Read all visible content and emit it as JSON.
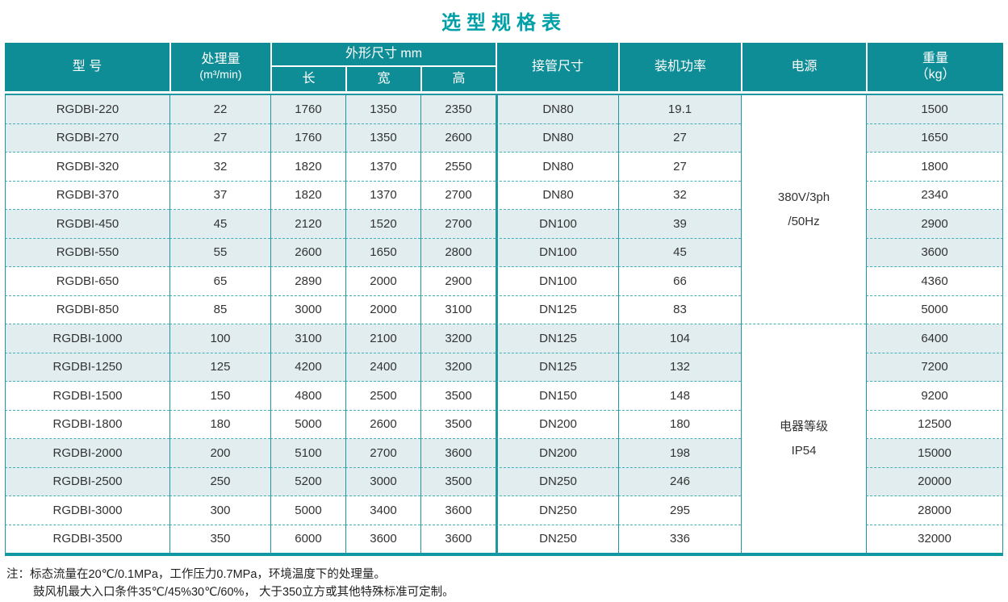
{
  "title": "选型规格表",
  "table": {
    "headers": {
      "model": "型 号",
      "capacity": "处理量",
      "capacity_unit": "(m³/min)",
      "dimensions": "外形尺寸 mm",
      "length": "长",
      "width": "宽",
      "height": "高",
      "pipe": "接管尺寸",
      "power": "装机功率",
      "supply": "电源",
      "weight": "重量",
      "weight_unit": "（kg）"
    },
    "supply_groups": [
      {
        "lines": [
          "380V/3ph",
          "/50Hz"
        ]
      },
      {
        "lines": [
          "电器等级",
          "IP54"
        ]
      }
    ],
    "rows": [
      {
        "model": "RGDBI-220",
        "capacity": "22",
        "length": "1760",
        "width": "1350",
        "height": "2350",
        "pipe": "DN80",
        "power": "19.1",
        "weight": "1500"
      },
      {
        "model": "RGDBI-270",
        "capacity": "27",
        "length": "1760",
        "width": "1350",
        "height": "2600",
        "pipe": "DN80",
        "power": "27",
        "weight": "1650"
      },
      {
        "model": "RGDBI-320",
        "capacity": "32",
        "length": "1820",
        "width": "1370",
        "height": "2550",
        "pipe": "DN80",
        "power": "27",
        "weight": "1800"
      },
      {
        "model": "RGDBI-370",
        "capacity": "37",
        "length": "1820",
        "width": "1370",
        "height": "2700",
        "pipe": "DN80",
        "power": "32",
        "weight": "2340"
      },
      {
        "model": "RGDBI-450",
        "capacity": "45",
        "length": "2120",
        "width": "1520",
        "height": "2700",
        "pipe": "DN100",
        "power": "39",
        "weight": "2900"
      },
      {
        "model": "RGDBI-550",
        "capacity": "55",
        "length": "2600",
        "width": "1650",
        "height": "2800",
        "pipe": "DN100",
        "power": "45",
        "weight": "3600"
      },
      {
        "model": "RGDBI-650",
        "capacity": "65",
        "length": "2890",
        "width": "2000",
        "height": "2900",
        "pipe": "DN100",
        "power": "66",
        "weight": "4360"
      },
      {
        "model": "RGDBI-850",
        "capacity": "85",
        "length": "3000",
        "width": "2000",
        "height": "3100",
        "pipe": "DN125",
        "power": "83",
        "weight": "5000"
      },
      {
        "model": "RGDBI-1000",
        "capacity": "100",
        "length": "3100",
        "width": "2100",
        "height": "3200",
        "pipe": "DN125",
        "power": "104",
        "weight": "6400"
      },
      {
        "model": "RGDBI-1250",
        "capacity": "125",
        "length": "4200",
        "width": "2400",
        "height": "3200",
        "pipe": "DN125",
        "power": "132",
        "weight": "7200"
      },
      {
        "model": "RGDBI-1500",
        "capacity": "150",
        "length": "4800",
        "width": "2500",
        "height": "3500",
        "pipe": "DN150",
        "power": "148",
        "weight": "9200"
      },
      {
        "model": "RGDBI-1800",
        "capacity": "180",
        "length": "5000",
        "width": "2600",
        "height": "3500",
        "pipe": "DN200",
        "power": "180",
        "weight": "12500"
      },
      {
        "model": "RGDBI-2000",
        "capacity": "200",
        "length": "5100",
        "width": "2700",
        "height": "3600",
        "pipe": "DN200",
        "power": "198",
        "weight": "15000"
      },
      {
        "model": "RGDBI-2500",
        "capacity": "250",
        "length": "5200",
        "width": "3000",
        "height": "3500",
        "pipe": "DN250",
        "power": "246",
        "weight": "20000"
      },
      {
        "model": "RGDBI-3000",
        "capacity": "300",
        "length": "5000",
        "width": "3400",
        "height": "3600",
        "pipe": "DN250",
        "power": "295",
        "weight": "28000"
      },
      {
        "model": "RGDBI-3500",
        "capacity": "350",
        "length": "6000",
        "width": "3600",
        "height": "3600",
        "pipe": "DN250",
        "power": "336",
        "weight": "32000"
      }
    ]
  },
  "notes": {
    "line1": "注：标态流量在20℃/0.1MPa，工作压力0.7MPa，环境温度下的处理量。",
    "line2": "鼓风机最大入口条件35℃/45%30℃/60%， 大于350立方或其他特殊标准可定制。"
  },
  "colors": {
    "header_background": "#0F8D97",
    "title_text": "#00A0A8",
    "grid_line": "#2097A0",
    "dashed_line": "#44AFB8",
    "row_shade": "#E2EDF0"
  }
}
